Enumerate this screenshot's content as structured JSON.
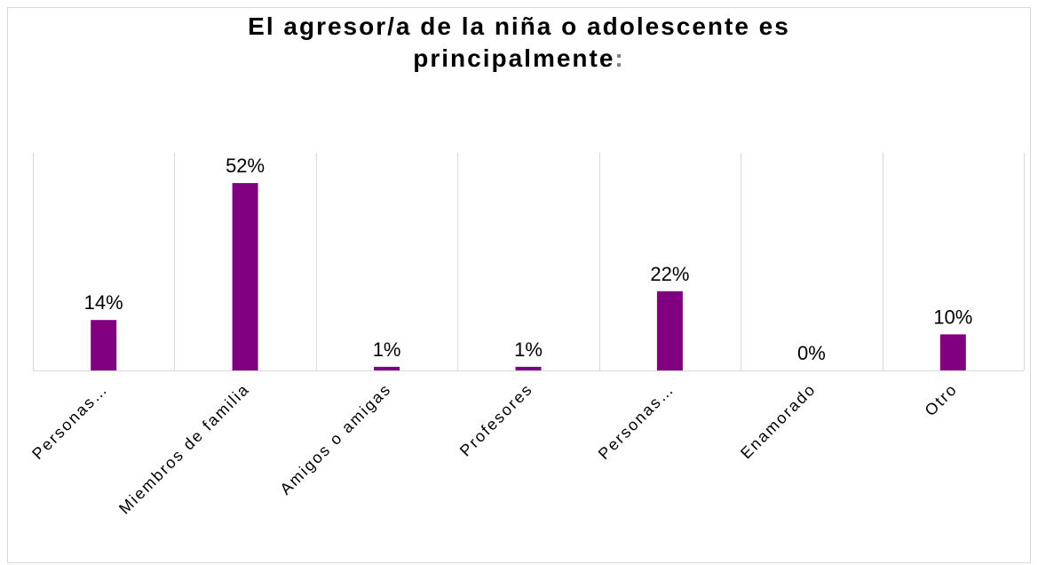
{
  "chart": {
    "title_line1": "El agresor/a de la niña o adolescente es",
    "title_line2": "principalmente",
    "title_colon": ":"
  },
  "chart_data": {
    "type": "bar",
    "title": "El agresor/a de la niña o adolescente es principalmente:",
    "categories": [
      "Personas…",
      "Miembros de familia",
      "Amigos o amigas",
      "Profesores",
      "Personas…",
      "Enamorado",
      "Otro"
    ],
    "values": [
      14,
      52,
      1,
      1,
      22,
      0,
      10
    ],
    "data_labels": [
      "14%",
      "52%",
      "1%",
      "1%",
      "22%",
      "0%",
      "10%"
    ],
    "unit": "%",
    "ylim": [
      0,
      60
    ],
    "grid": "vertical",
    "legend": "none",
    "colors": {
      "bar": "#800080",
      "grid": "#d9d9d9",
      "axis": "#d9d9d9"
    }
  }
}
